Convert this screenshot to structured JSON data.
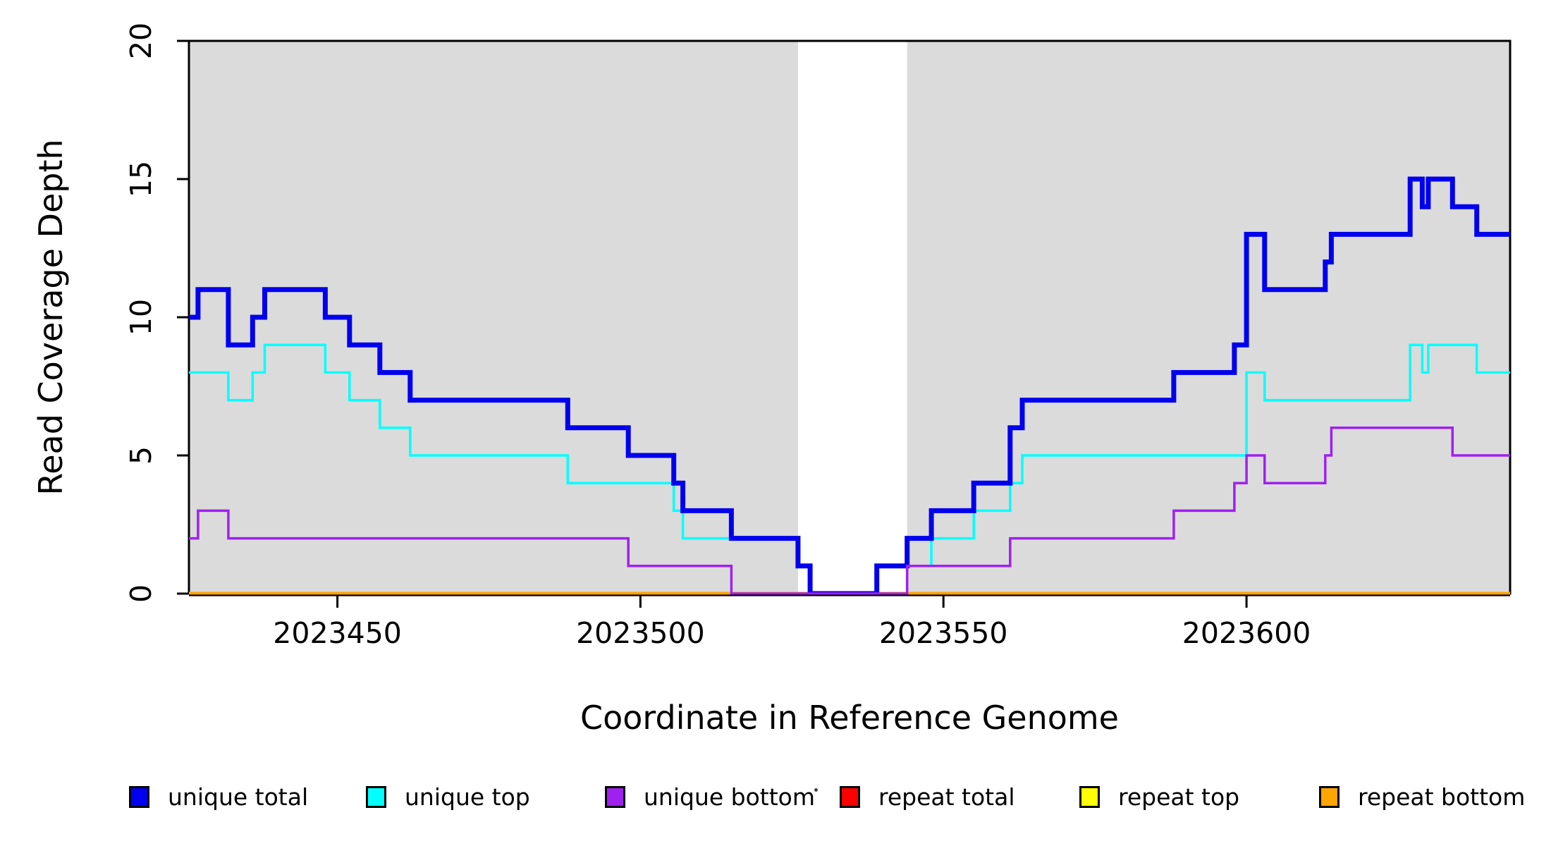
{
  "chart_data": {
    "type": "line",
    "subtype": "step-coverage-plot",
    "title": "",
    "xlabel": "Coordinate in Reference Genome",
    "ylabel": "Read Coverage Depth",
    "xlim": [
      2023425.5,
      2023643.5
    ],
    "ylim": [
      0,
      20
    ],
    "x_ticks": [
      2023450,
      2023500,
      2023550,
      2023600
    ],
    "x_tick_labels": [
      "2023450",
      "2023500",
      "2023550",
      "2023600"
    ],
    "y_ticks": [
      0,
      5,
      10,
      15,
      20
    ],
    "y_tick_labels": [
      "0",
      "5",
      "10",
      "15",
      "20"
    ],
    "grid": false,
    "frame_color": "#000000",
    "background_color": "#FFFFFF",
    "shaded_regions": [
      {
        "x0": 2023425.5,
        "x1": 2023526,
        "color": "#DBDBDB"
      },
      {
        "x0": 2023544,
        "x1": 2023643.5,
        "color": "#DBDBDB"
      }
    ],
    "step_x": [
      2023425.5,
      2023427,
      2023432,
      2023436,
      2023438,
      2023448,
      2023452,
      2023457,
      2023462,
      2023488,
      2023498,
      2023505.5,
      2023507,
      2023515,
      2023526,
      2023528,
      2023539,
      2023544,
      2023548,
      2023555,
      2023561,
      2023563,
      2023588,
      2023598,
      2023600,
      2023603,
      2023613,
      2023614,
      2023627,
      2023629,
      2023630,
      2023634,
      2023638,
      2023643.5
    ],
    "series": [
      {
        "name": "unique total",
        "color": "#0000EE",
        "line_width": 7,
        "values": [
          10,
          11,
          9,
          10,
          11,
          10,
          9,
          8,
          7,
          6,
          5,
          4,
          3,
          2,
          1,
          0,
          1,
          2,
          3,
          4,
          6,
          7,
          8,
          9,
          13,
          11,
          12,
          13,
          15,
          14,
          15,
          14,
          13
        ]
      },
      {
        "name": "unique top",
        "color": "#00FFFF",
        "line_width": 3.5,
        "values": [
          8,
          8,
          7,
          8,
          9,
          8,
          7,
          6,
          5,
          4,
          4,
          3,
          2,
          2,
          1,
          0,
          1,
          1,
          2,
          3,
          4,
          5,
          5,
          5,
          8,
          7,
          7,
          7,
          9,
          8,
          9,
          9,
          8
        ]
      },
      {
        "name": "unique bottom",
        "color": "#A020F0",
        "line_width": 3.5,
        "values": [
          2,
          3,
          2,
          2,
          2,
          2,
          2,
          2,
          2,
          2,
          1,
          1,
          1,
          0,
          0,
          0,
          0,
          1,
          1,
          1,
          2,
          2,
          3,
          4,
          5,
          4,
          5,
          6,
          6,
          6,
          6,
          5,
          5
        ]
      },
      {
        "name": "repeat total",
        "color": "#FF0000",
        "line_width": 4.5,
        "values": [
          0,
          0,
          0,
          0,
          0,
          0,
          0,
          0,
          0,
          0,
          0,
          0,
          0,
          0,
          0,
          0,
          0,
          0,
          0,
          0,
          0,
          0,
          0,
          0,
          0,
          0,
          0,
          0,
          0,
          0,
          0,
          0,
          0
        ]
      },
      {
        "name": "repeat top",
        "color": "#FFFF00",
        "line_width": 4,
        "values": [
          0,
          0,
          0,
          0,
          0,
          0,
          0,
          0,
          0,
          0,
          0,
          0,
          0,
          0,
          0,
          0,
          0,
          0,
          0,
          0,
          0,
          0,
          0,
          0,
          0,
          0,
          0,
          0,
          0,
          0,
          0,
          0,
          0
        ]
      },
      {
        "name": "repeat bottom",
        "color": "#FFA500",
        "line_width": 5,
        "values": [
          0,
          0,
          0,
          0,
          0,
          0,
          0,
          0,
          0,
          0,
          0,
          0,
          0,
          0,
          0,
          0,
          0,
          0,
          0,
          0,
          0,
          0,
          0,
          0,
          0,
          0,
          0,
          0,
          0,
          0,
          0,
          0,
          0
        ]
      }
    ],
    "draw_order": [
      "repeat total",
      "repeat top",
      "repeat bottom",
      "unique top",
      "unique total",
      "unique bottom"
    ],
    "legend": {
      "position": "bottom",
      "entries": [
        {
          "label": "unique total",
          "color": "#0000EE"
        },
        {
          "label": "unique top",
          "color": "#00FFFF"
        },
        {
          "label": "unique bottom",
          "color": "#A020F0"
        },
        {
          "label": "repeat total",
          "color": "#FF0000"
        },
        {
          "label": "repeat top",
          "color": "#FFFF00"
        },
        {
          "label": "repeat bottom",
          "color": "#FFA500"
        }
      ]
    }
  }
}
